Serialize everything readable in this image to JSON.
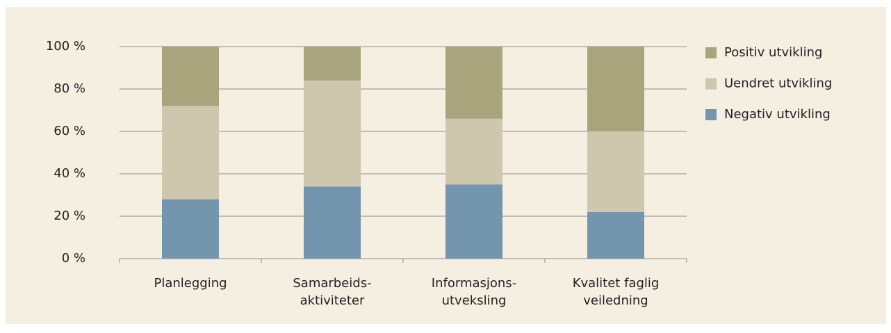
{
  "chart_data": {
    "type": "stacked_bar",
    "categories": [
      "Planlegging",
      "Samarbeids-\naktiviteter",
      "Informasjons-\nutveksling",
      "Kvalitet faglig\nveiledning"
    ],
    "series": [
      {
        "name": "Negativ utvikling",
        "color": "#7495ae",
        "values": [
          28,
          34,
          35,
          22
        ]
      },
      {
        "name": "Uendret utvikling",
        "color": "#cec6ad",
        "values": [
          44,
          50,
          31,
          38
        ]
      },
      {
        "name": "Positiv utvikling",
        "color": "#a8a47c",
        "values": [
          28,
          16,
          34,
          40
        ]
      }
    ],
    "ylim": [
      0,
      100
    ],
    "yticks": [
      {
        "value": 0,
        "label": "0 %"
      },
      {
        "value": 20,
        "label": "20 %"
      },
      {
        "value": 40,
        "label": "40 %"
      },
      {
        "value": 60,
        "label": "60 %"
      },
      {
        "value": 80,
        "label": "80 %"
      },
      {
        "value": 100,
        "label": "100 %"
      }
    ],
    "grid": true,
    "legend": "right"
  }
}
